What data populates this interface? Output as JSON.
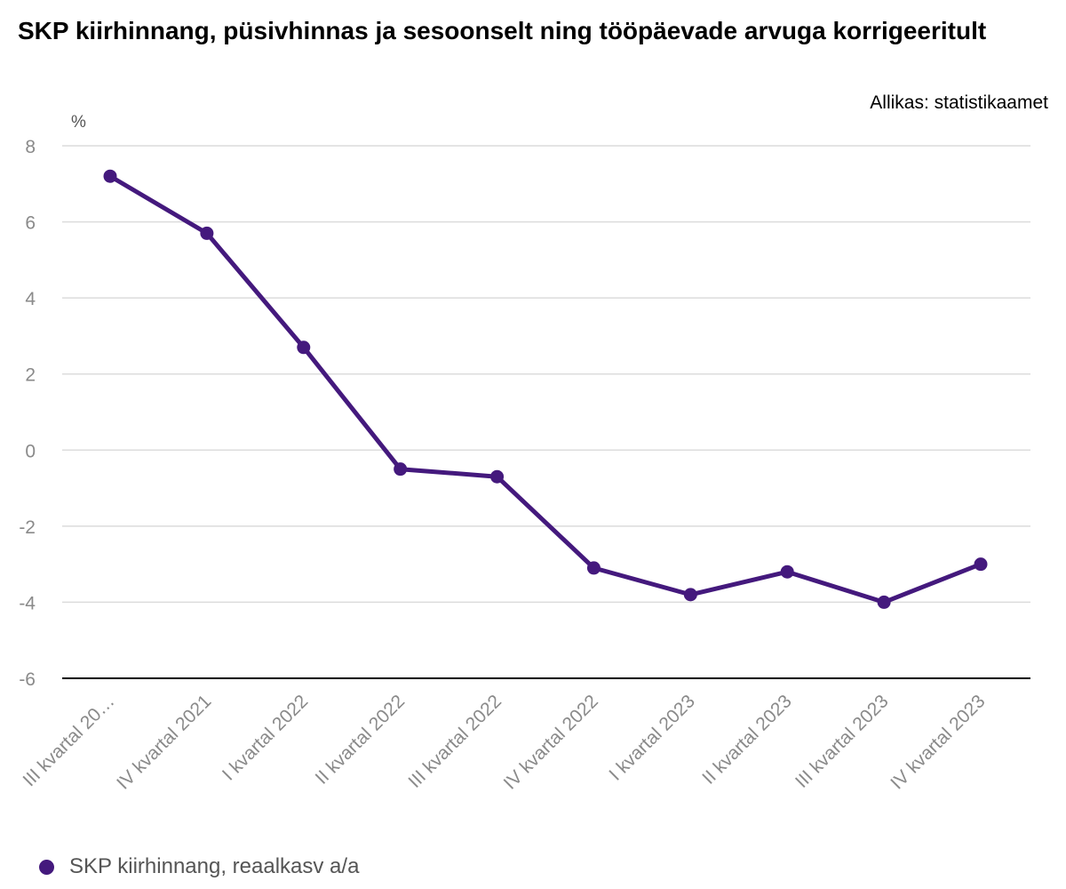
{
  "chart_data": {
    "type": "line",
    "title": "SKP kiirhinnang, püsivhinnas ja sesoonselt ning tööpäevade arvuga korrigeeritult",
    "source": "Allikas: statistikaamet",
    "ylabel": "%",
    "ylim": [
      -6,
      8
    ],
    "yticks": [
      8,
      6,
      4,
      2,
      0,
      -2,
      -4,
      -6
    ],
    "grid": true,
    "legend_position": "bottom-left",
    "categories": [
      "III kvartal 20…",
      "IV kvartal 2021",
      "I kvartal 2022",
      "II kvartal 2022",
      "III kvartal 2022",
      "IV kvartal 2022",
      "I kvartal 2023",
      "II kvartal 2023",
      "III kvartal 2023",
      "IV kvartal 2023"
    ],
    "series": [
      {
        "name": "SKP kiirhinnang, reaalkasv a/a",
        "color": "#44197d",
        "values": [
          7.2,
          5.7,
          2.7,
          -0.5,
          -0.7,
          -3.1,
          -3.8,
          -3.2,
          -4.0,
          -3.0
        ]
      }
    ]
  }
}
